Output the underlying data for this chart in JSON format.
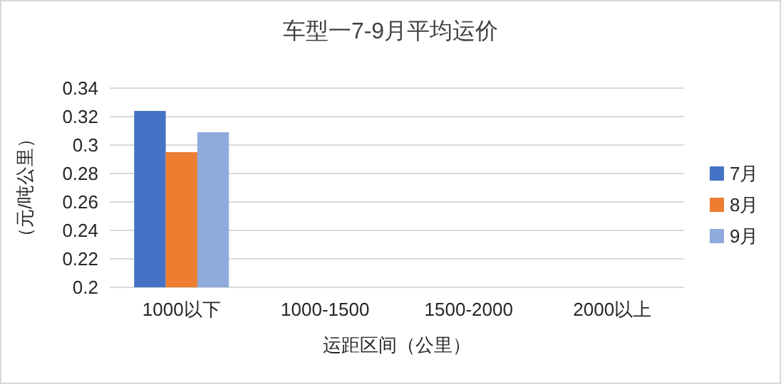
{
  "chart_data": {
    "type": "bar",
    "title": "车型一7-9月平均运价",
    "xlabel": "运距区间（公里）",
    "ylabel": "（元/吨公里）",
    "categories": [
      "1000以下",
      "1000-1500",
      "1500-2000",
      "2000以上"
    ],
    "series": [
      {
        "name": "7月",
        "color": "#4472c4",
        "values": [
          0.324,
          null,
          null,
          null
        ]
      },
      {
        "name": "8月",
        "color": "#ed7d31",
        "values": [
          0.295,
          null,
          null,
          null
        ]
      },
      {
        "name": "9月",
        "color": "#8faadc",
        "values": [
          0.309,
          null,
          null,
          null
        ]
      }
    ],
    "ylim": [
      0.2,
      0.34
    ],
    "yticks": [
      {
        "value": 0.2,
        "label": "0.2"
      },
      {
        "value": 0.22,
        "label": "0.22"
      },
      {
        "value": 0.24,
        "label": "0.24"
      },
      {
        "value": 0.26,
        "label": "0.26"
      },
      {
        "value": 0.28,
        "label": "0.28"
      },
      {
        "value": 0.3,
        "label": "0.3"
      },
      {
        "value": 0.32,
        "label": "0.32"
      },
      {
        "value": 0.34,
        "label": "0.34"
      }
    ],
    "grid": "y",
    "legend": "right"
  }
}
